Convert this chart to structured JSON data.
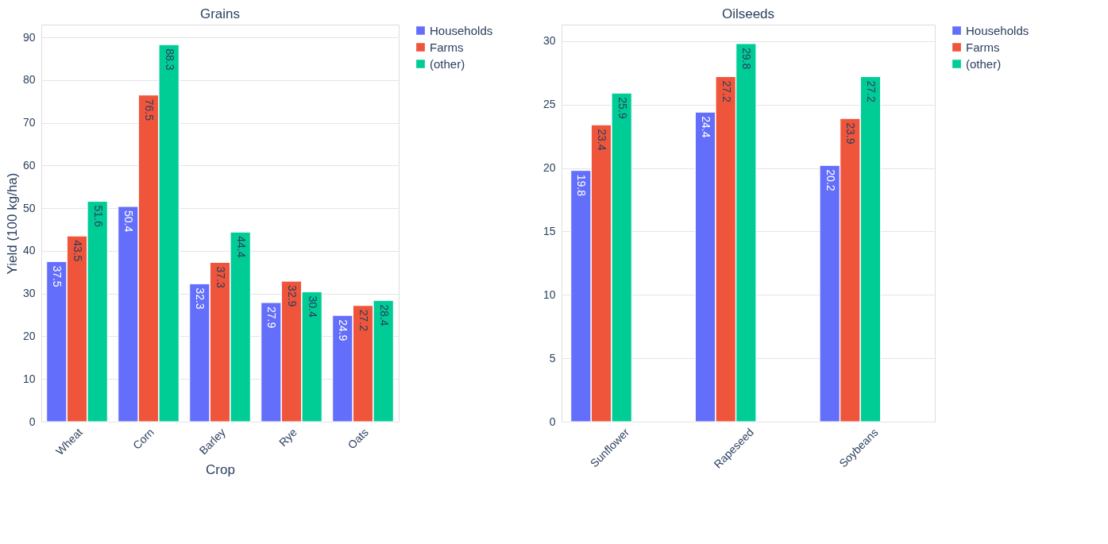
{
  "chart_data": [
    {
      "type": "bar",
      "title": "Grains",
      "xlabel": "Crop",
      "ylabel": "Yield (100 kg/ha)",
      "categories": [
        "Wheat",
        "Corn",
        "Barley",
        "Rye",
        "Oats"
      ],
      "series": [
        {
          "name": "Households",
          "color": "#636efa",
          "values": [
            37.5,
            50.4,
            32.3,
            27.9,
            24.9
          ]
        },
        {
          "name": "Farms",
          "color": "#ef553b",
          "values": [
            43.5,
            76.5,
            37.3,
            32.9,
            27.2
          ]
        },
        {
          "name": "(other)",
          "color": "#00cc96",
          "values": [
            51.6,
            88.3,
            44.4,
            30.4,
            28.4
          ]
        }
      ],
      "ylim": [
        0,
        93
      ],
      "yticks": [
        0,
        10,
        20,
        30,
        40,
        50,
        60,
        70,
        80,
        90
      ],
      "grid": "y",
      "data_labels": true,
      "legend": "top right"
    },
    {
      "type": "bar",
      "title": "Oilseeds",
      "categories": [
        "Sunflower",
        "Rapeseed",
        "Soybeans"
      ],
      "series": [
        {
          "name": "Households",
          "color": "#636efa",
          "values": [
            19.8,
            24.4,
            20.2
          ]
        },
        {
          "name": "Farms",
          "color": "#ef553b",
          "values": [
            23.4,
            27.2,
            23.9
          ]
        },
        {
          "name": "(other)",
          "color": "#00cc96",
          "values": [
            25.9,
            29.8,
            27.2
          ]
        }
      ],
      "ylim": [
        0,
        31.3
      ],
      "yticks": [
        0,
        5,
        10,
        15,
        20,
        25,
        30
      ],
      "grid": "y",
      "data_labels": true,
      "legend": "top right"
    }
  ]
}
